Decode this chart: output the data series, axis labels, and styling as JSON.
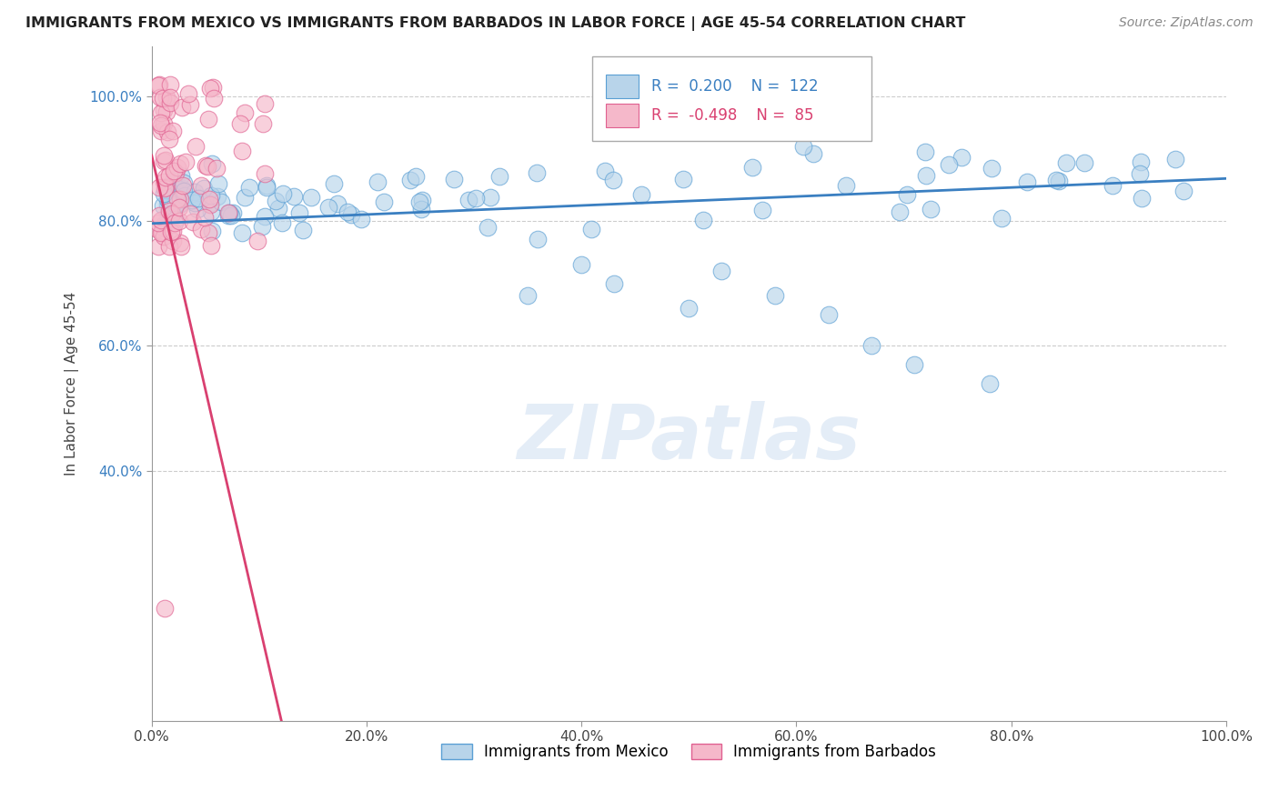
{
  "title": "IMMIGRANTS FROM MEXICO VS IMMIGRANTS FROM BARBADOS IN LABOR FORCE | AGE 45-54 CORRELATION CHART",
  "source": "Source: ZipAtlas.com",
  "ylabel": "In Labor Force | Age 45-54",
  "xlim": [
    0,
    1.0
  ],
  "ylim": [
    0,
    1.08
  ],
  "xtick_labels": [
    "0.0%",
    "20.0%",
    "40.0%",
    "60.0%",
    "80.0%",
    "100.0%"
  ],
  "xtick_vals": [
    0.0,
    0.2,
    0.4,
    0.6,
    0.8,
    1.0
  ],
  "ytick_labels": [
    "40.0%",
    "60.0%",
    "80.0%",
    "100.0%"
  ],
  "ytick_vals": [
    0.4,
    0.6,
    0.8,
    1.0
  ],
  "mexico_color": "#b8d4ea",
  "mexico_edge": "#5a9fd4",
  "barbados_color": "#f5b8ca",
  "barbados_edge": "#e06090",
  "R_mexico": 0.2,
  "N_mexico": 122,
  "R_barbados": -0.498,
  "N_barbados": 85,
  "legend_label_mexico": "Immigrants from Mexico",
  "legend_label_barbados": "Immigrants from Barbados",
  "mexico_line_color": "#3a7fc1",
  "barbados_line_color": "#d94070",
  "watermark": "ZIPatlas",
  "background_color": "#ffffff",
  "grid_color": "#cccccc",
  "title_color": "#222222",
  "stats_color_blue": "#3a7fc1",
  "stats_color_pink": "#d94070",
  "mexico_line_y0": 0.796,
  "mexico_line_y1": 0.868,
  "barbados_line_y0": 0.905,
  "barbados_line_x_zero": 0.0,
  "barbados_line_slope": -7.5
}
